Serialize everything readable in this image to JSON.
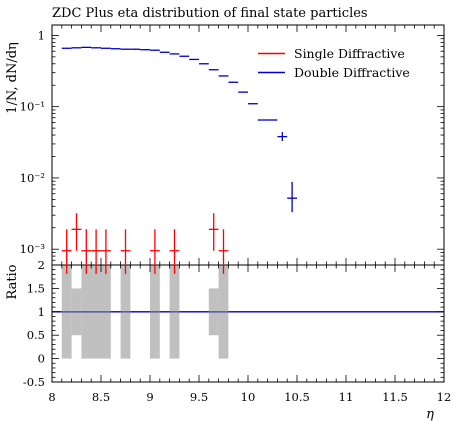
{
  "chart_data": [
    {
      "type": "scatter",
      "title": "ZDC Plus eta distribution of final state particles",
      "ylabel": "1/N, dN/dη",
      "yscale": "log",
      "ylim": [
        0.0006,
        1.4
      ],
      "xlim": [
        8,
        12
      ],
      "y_tick_labels": [
        "1",
        "10⁻¹",
        "10⁻²",
        "10⁻³"
      ],
      "legend": {
        "placement": "top-right",
        "entries": [
          "Single Diffractive",
          "Double Diffractive"
        ]
      },
      "series": [
        {
          "name": "Single Diffractive",
          "color": "#ff0000",
          "points": [
            {
              "x": 8.15,
              "xerr": 0.05,
              "y": 0.00095,
              "ylo": 0.00045,
              "yhi": 0.0019
            },
            {
              "x": 8.25,
              "xerr": 0.05,
              "y": 0.0019,
              "ylo": 0.00095,
              "yhi": 0.0032
            },
            {
              "x": 8.35,
              "xerr": 0.05,
              "y": 0.00095,
              "ylo": 0.00045,
              "yhi": 0.0019
            },
            {
              "x": 8.45,
              "xerr": 0.05,
              "y": 0.00095,
              "ylo": 0.00045,
              "yhi": 0.0019
            },
            {
              "x": 8.55,
              "xerr": 0.05,
              "y": 0.00095,
              "ylo": 0.00045,
              "yhi": 0.0019
            },
            {
              "x": 8.75,
              "xerr": 0.05,
              "y": 0.00095,
              "ylo": 0.00045,
              "yhi": 0.0019
            },
            {
              "x": 9.05,
              "xerr": 0.05,
              "y": 0.00095,
              "ylo": 0.00045,
              "yhi": 0.0019
            },
            {
              "x": 9.25,
              "xerr": 0.05,
              "y": 0.00095,
              "ylo": 0.00045,
              "yhi": 0.0019
            },
            {
              "x": 9.65,
              "xerr": 0.05,
              "y": 0.0019,
              "ylo": 0.00095,
              "yhi": 0.0032
            },
            {
              "x": 9.75,
              "xerr": 0.05,
              "y": 0.00095,
              "ylo": 0.00045,
              "yhi": 0.0019
            }
          ]
        },
        {
          "name": "Double Diffractive",
          "color": "#0000cc",
          "points": [
            {
              "x": 8.15,
              "xerr": 0.05,
              "y": 0.66
            },
            {
              "x": 8.25,
              "xerr": 0.05,
              "y": 0.67
            },
            {
              "x": 8.35,
              "xerr": 0.05,
              "y": 0.68
            },
            {
              "x": 8.45,
              "xerr": 0.05,
              "y": 0.67
            },
            {
              "x": 8.55,
              "xerr": 0.05,
              "y": 0.66
            },
            {
              "x": 8.65,
              "xerr": 0.05,
              "y": 0.65
            },
            {
              "x": 8.75,
              "xerr": 0.05,
              "y": 0.64
            },
            {
              "x": 8.85,
              "xerr": 0.05,
              "y": 0.64
            },
            {
              "x": 8.95,
              "xerr": 0.05,
              "y": 0.63
            },
            {
              "x": 9.05,
              "xerr": 0.05,
              "y": 0.62
            },
            {
              "x": 9.15,
              "xerr": 0.05,
              "y": 0.58
            },
            {
              "x": 9.25,
              "xerr": 0.05,
              "y": 0.55
            },
            {
              "x": 9.35,
              "xerr": 0.05,
              "y": 0.51
            },
            {
              "x": 9.45,
              "xerr": 0.05,
              "y": 0.46
            },
            {
              "x": 9.55,
              "xerr": 0.05,
              "y": 0.4
            },
            {
              "x": 9.65,
              "xerr": 0.05,
              "y": 0.33
            },
            {
              "x": 9.75,
              "xerr": 0.05,
              "y": 0.27
            },
            {
              "x": 9.85,
              "xerr": 0.05,
              "y": 0.22
            },
            {
              "x": 9.95,
              "xerr": 0.05,
              "y": 0.16
            },
            {
              "x": 10.05,
              "xerr": 0.05,
              "y": 0.11
            },
            {
              "x": 10.15,
              "xerr": 0.05,
              "y": 0.065
            },
            {
              "x": 10.25,
              "xerr": 0.05,
              "y": 0.065
            },
            {
              "x": 10.35,
              "xerr": 0.05,
              "y": 0.038,
              "ylo": 0.033,
              "yhi": 0.044
            },
            {
              "x": 10.45,
              "xerr": 0.05,
              "y": 0.0052,
              "ylo": 0.0033,
              "yhi": 0.0088
            }
          ]
        }
      ]
    },
    {
      "type": "bar",
      "ylabel": "Ratio",
      "xlabel": "η",
      "xlim": [
        8,
        12
      ],
      "ylim": [
        -0.5,
        2
      ],
      "x_tick_labels": [
        "8",
        "8.5",
        "9",
        "9.5",
        "10",
        "10.5",
        "11",
        "11.5",
        "12"
      ],
      "y_tick_labels": [
        "2",
        "1.5",
        "1",
        "0.5",
        "0",
        "-0.5"
      ],
      "reference_line": {
        "y": 1,
        "color": "#0000cc"
      },
      "band_color": "#c0c0c0",
      "bands": [
        {
          "x0": 8.1,
          "x1": 8.2,
          "lo": 0,
          "hi": 2
        },
        {
          "x0": 8.2,
          "x1": 8.3,
          "lo": 0.5,
          "hi": 1.5
        },
        {
          "x0": 8.3,
          "x1": 8.6,
          "lo": 0,
          "hi": 2
        },
        {
          "x0": 8.7,
          "x1": 8.8,
          "lo": 0,
          "hi": 2
        },
        {
          "x0": 9.0,
          "x1": 9.1,
          "lo": 0,
          "hi": 2
        },
        {
          "x0": 9.2,
          "x1": 9.3,
          "lo": 0,
          "hi": 2
        },
        {
          "x0": 9.6,
          "x1": 9.7,
          "lo": 0.5,
          "hi": 1.5
        },
        {
          "x0": 9.7,
          "x1": 9.8,
          "lo": 0,
          "hi": 2
        }
      ],
      "ratio_lines": [
        {
          "x0": 8.1,
          "x1": 8.6,
          "y": 1
        },
        {
          "x0": 8.7,
          "x1": 8.8,
          "y": 1
        },
        {
          "x0": 9.0,
          "x1": 9.1,
          "y": 1
        },
        {
          "x0": 9.2,
          "x1": 9.3,
          "y": 1
        },
        {
          "x0": 9.6,
          "x1": 9.8,
          "y": 1
        }
      ]
    }
  ]
}
